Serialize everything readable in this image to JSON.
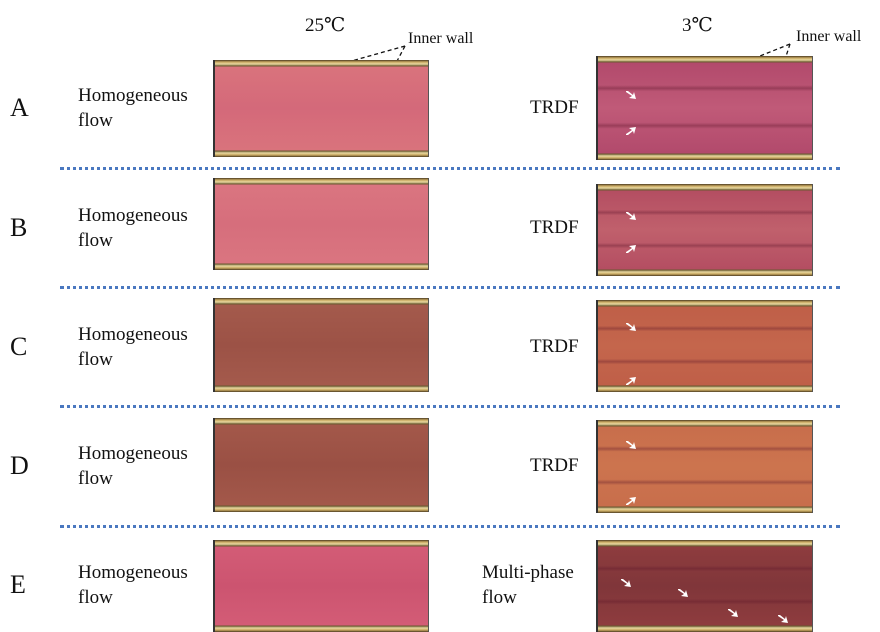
{
  "columns": [
    "25℃",
    "3℃"
  ],
  "annotations": [
    "Inner wall",
    "Inner wall"
  ],
  "rows": [
    {
      "letter": "A",
      "left": "Homogeneous flow",
      "right": "TRDF"
    },
    {
      "letter": "B",
      "left": "Homogeneous flow",
      "right": "TRDF"
    },
    {
      "letter": "C",
      "left": "Homogeneous flow",
      "right": "TRDF"
    },
    {
      "letter": "D",
      "left": "Homogeneous flow",
      "right": "TRDF"
    },
    {
      "letter": "E",
      "left": "Homogeneous flow",
      "right": "Multi-phase flow"
    }
  ]
}
